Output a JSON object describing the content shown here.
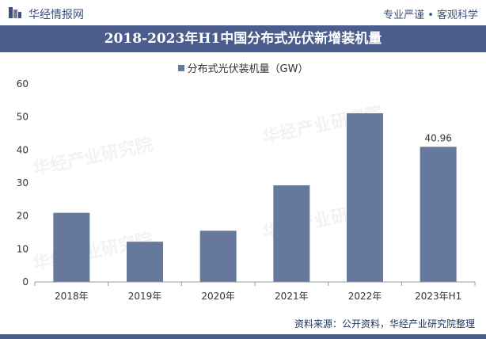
{
  "header": {
    "brand": "华经情报网",
    "tagline": "专业严谨 • 客观科学"
  },
  "chart_data": {
    "type": "bar",
    "title": "2018-2023年H1中国分布式光伏新增装机量",
    "categories": [
      "2018年",
      "2019年",
      "2020年",
      "2021年",
      "2022年",
      "2023年H1"
    ],
    "series": [
      {
        "name": "分布式光伏装机量（GW）",
        "values": [
          20.96,
          12.2,
          15.52,
          29.28,
          51.11,
          40.96
        ],
        "color": "#67789f"
      }
    ],
    "data_labels": [
      null,
      null,
      null,
      null,
      null,
      "40.96"
    ],
    "ylim": [
      0,
      60
    ],
    "yticks": [
      0,
      10,
      20,
      30,
      40,
      50,
      60
    ],
    "legend_position": "top-center",
    "grid": false
  },
  "watermark": "华经产业研究院",
  "footer": {
    "source": "资料来源：公开资料，华经产业研究院整理"
  },
  "colors": {
    "title_bar": "#4a5d8c",
    "bar": "#67789f",
    "text_dark": "#3d4f7a"
  }
}
